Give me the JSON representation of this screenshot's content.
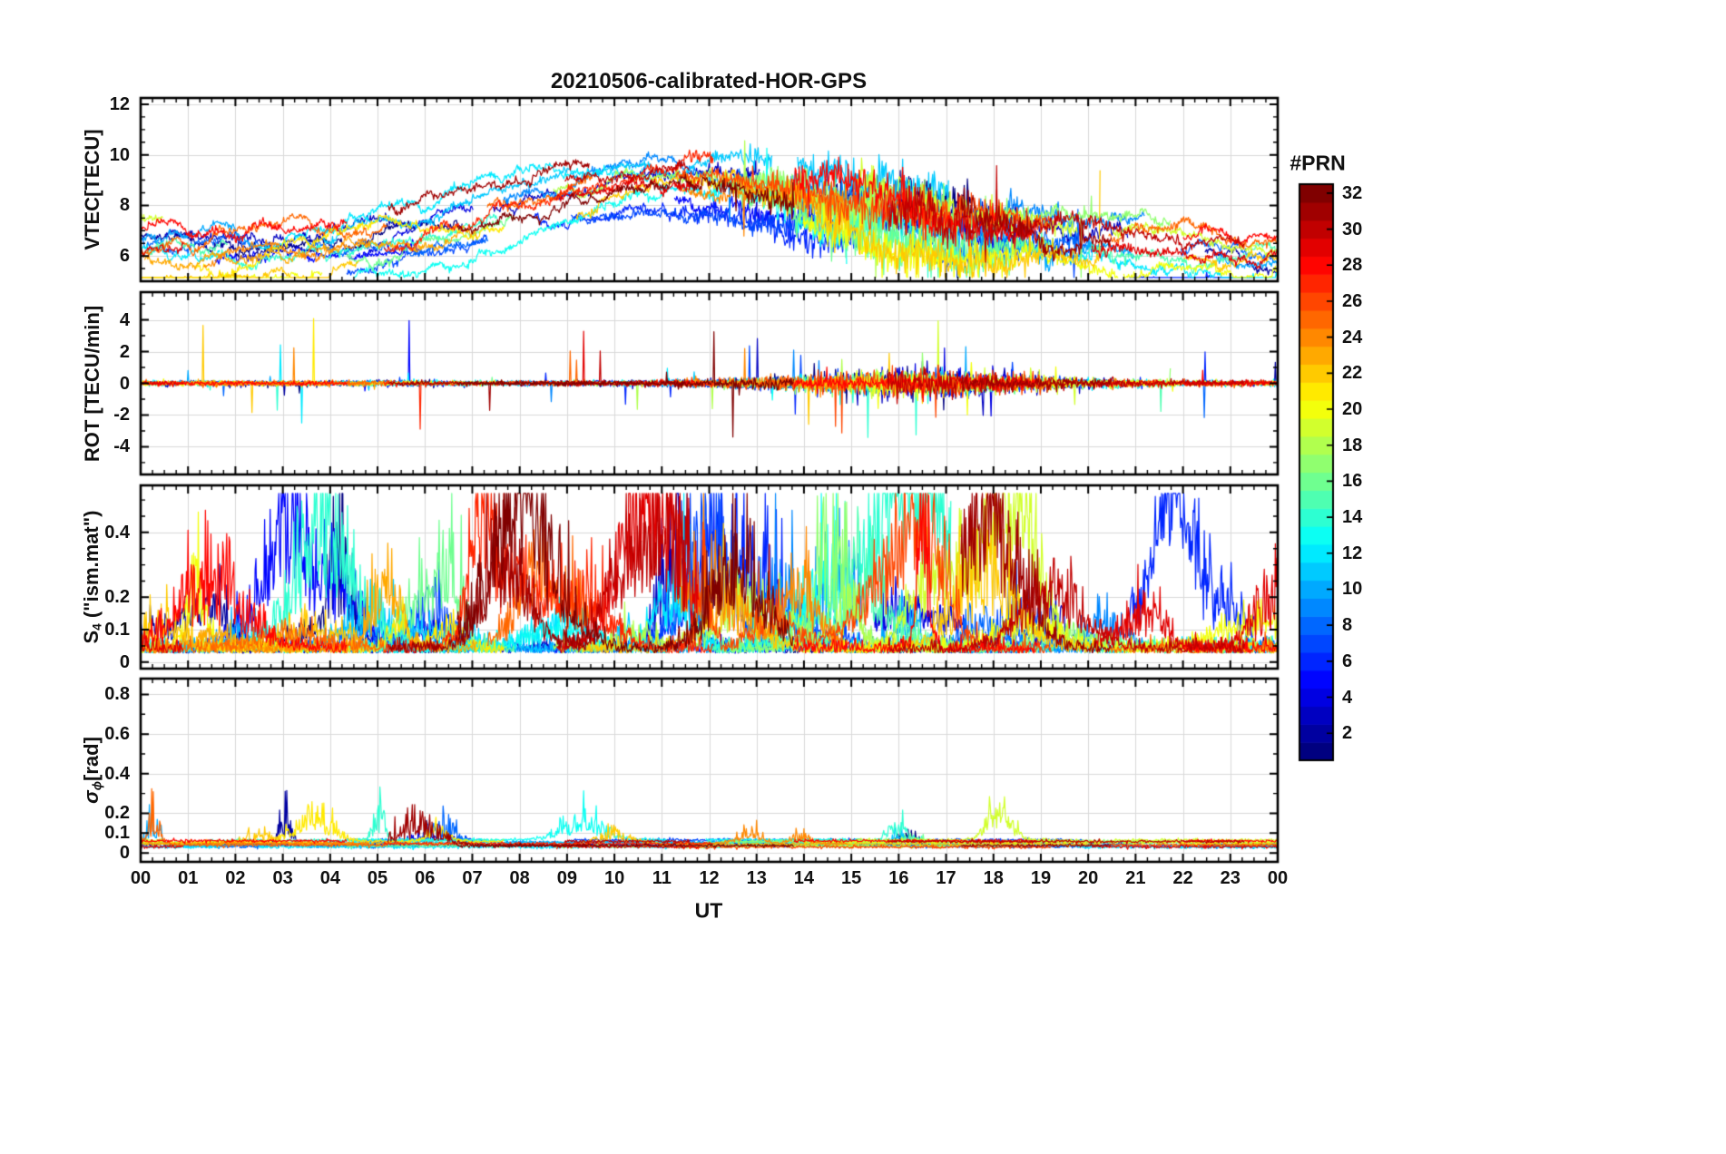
{
  "figure": {
    "title": "20210506-calibrated-HOR-GPS",
    "xlabel": "UT",
    "background": "#ffffff",
    "text_color": "#111111",
    "grid_color": "#d9d9d9"
  },
  "colorbar": {
    "title": "#PRN",
    "colormap": "jet",
    "levels": 32,
    "prn_range": [
      1,
      32
    ],
    "tick_values": [
      2,
      4,
      6,
      8,
      10,
      12,
      14,
      16,
      18,
      20,
      22,
      24,
      26,
      28,
      30,
      32
    ],
    "tick_labels": [
      "2",
      "4",
      "6",
      "8",
      "10",
      "12",
      "14",
      "16",
      "18",
      "20",
      "22",
      "24",
      "26",
      "28",
      "30",
      "32"
    ]
  },
  "x_axis": {
    "range_hours": [
      0,
      24
    ],
    "tick_values": [
      0,
      1,
      2,
      3,
      4,
      5,
      6,
      7,
      8,
      9,
      10,
      11,
      12,
      13,
      14,
      15,
      16,
      17,
      18,
      19,
      20,
      21,
      22,
      23,
      24
    ],
    "tick_labels": [
      "00",
      "01",
      "02",
      "03",
      "04",
      "05",
      "06",
      "07",
      "08",
      "09",
      "10",
      "11",
      "12",
      "13",
      "14",
      "15",
      "16",
      "17",
      "18",
      "19",
      "20",
      "21",
      "22",
      "23",
      "00"
    ],
    "minor_step_hours": 0.25
  },
  "chart_data": [
    {
      "type": "line",
      "panel_id": "vtec",
      "ylabel": {
        "main": "VTEC[TECU]",
        "sub": "",
        "post": "",
        "italic": false
      },
      "ylim": [
        5.0,
        12.25
      ],
      "ytick_values": [
        6,
        8,
        10,
        12
      ],
      "ytick_labels": [
        "6",
        "8",
        "10",
        "12"
      ],
      "minor_tick_step": 0.5,
      "grid": true,
      "n_series": 32,
      "series_colored_by": "GPS PRN 1-32 via jet colormap",
      "series_note": "Calibrated vertical TEC per satellite: ~6-8 TECU at night, rising to ~9-12 TECU between 08-17 UT, strong irregular fluctuations 13-20 UT with peaks clipped near 12 TECU around 14-15 UT"
    },
    {
      "type": "line",
      "panel_id": "rot",
      "ylabel": {
        "main": "ROT [TECU/min]",
        "sub": "",
        "post": "",
        "italic": false
      },
      "ylim": [
        -5.75,
        5.75
      ],
      "ytick_values": [
        -4,
        -2,
        0,
        2,
        4
      ],
      "ytick_labels": [
        "-4",
        "-2",
        "0",
        "2",
        "4"
      ],
      "minor_tick_step": 1,
      "grid": true,
      "n_series": 32,
      "series_colored_by": "GPS PRN 1-32 via jet colormap",
      "series_note": "Rate of TEC change centered on 0: quiet band within about ±0.5 before 12 UT, disturbed with excursions of ±2 to ±4 TECU/min between 12 and 19 UT"
    },
    {
      "type": "line",
      "panel_id": "s4",
      "ylabel": {
        "main": "S",
        "sub": "4",
        "post": " (\"ism.mat\")",
        "italic": false
      },
      "ylim": [
        -0.02,
        0.545
      ],
      "ytick_values": [
        0,
        0.1,
        0.2,
        0.4
      ],
      "ytick_labels": [
        "0",
        "0.1",
        "0.2",
        "0.4"
      ],
      "minor_tick_step": 0.05,
      "grid": true,
      "n_series": 32,
      "series_colored_by": "GPS PRN 1-32 via jet colormap",
      "series_note": "Amplitude scintillation index: baseline ~0.03-0.08 with intermittent bursts of 0.1-0.3 through the whole day, maximum ~0.4 near 01:30 UT"
    },
    {
      "type": "line",
      "panel_id": "sigma_phi",
      "ylabel": {
        "main": "σ",
        "sub": "ϕ",
        "post": "[rad]",
        "italic": true
      },
      "ylim": [
        -0.045,
        0.88
      ],
      "ytick_values": [
        0,
        0.1,
        0.2,
        0.4,
        0.6,
        0.8
      ],
      "ytick_labels": [
        "0",
        "0.1",
        "0.2",
        "0.4",
        "0.6",
        "0.8"
      ],
      "minor_tick_step": 0.1,
      "grid": true,
      "n_series": 32,
      "series_colored_by": "GPS PRN 1-32 via jet colormap",
      "series_note": "Phase scintillation index: nearly flat lines at ~0.03-0.08 rad with occasional small bursts up to ~0.2 rad"
    }
  ],
  "render_params": {
    "seed": 20210506,
    "samples_per_hour": 60,
    "n_satellites": 32,
    "line_width": 1.2
  }
}
